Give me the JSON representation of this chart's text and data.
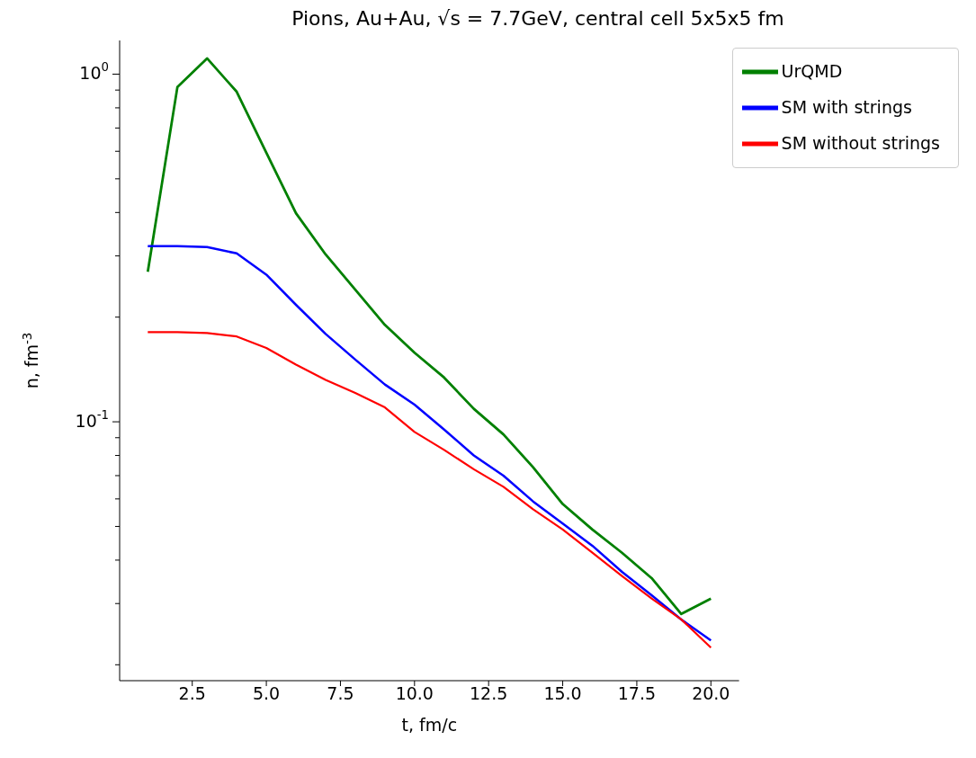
{
  "chart_data": {
    "type": "line",
    "title": "Pions, Au+Au, √s = 7.7GeV, central cell 5x5x5 fm",
    "xlabel": "t, fm/c",
    "ylabel": "n, fm$^{-3}$",
    "x": [
      1,
      2,
      3,
      4,
      5,
      6,
      7,
      8,
      9,
      10,
      11,
      12,
      13,
      14,
      15,
      16,
      17,
      18,
      19,
      20
    ],
    "series": [
      {
        "name": "UrQMD",
        "color": "#008000",
        "values": [
          0.27,
          0.919,
          1.11,
          0.89,
          0.594,
          0.398,
          0.303,
          0.24,
          0.19,
          0.158,
          0.134,
          0.109,
          0.092,
          0.074,
          0.058,
          0.049,
          0.042,
          0.0355,
          0.028,
          0.031
        ]
      },
      {
        "name": "SM with strings",
        "color": "#0000ff",
        "values": [
          0.32,
          0.32,
          0.318,
          0.305,
          0.265,
          0.217,
          0.179,
          0.151,
          0.128,
          0.112,
          0.095,
          0.08,
          0.07,
          0.059,
          0.051,
          0.044,
          0.037,
          0.0317,
          0.027,
          0.0235
        ]
      },
      {
        "name": "SM without strings",
        "color": "#ff0000",
        "values": [
          0.181,
          0.181,
          0.18,
          0.176,
          0.163,
          0.146,
          0.132,
          0.121,
          0.11,
          0.0935,
          0.083,
          0.073,
          0.065,
          0.056,
          0.049,
          0.042,
          0.036,
          0.031,
          0.027,
          0.0224
        ]
      }
    ],
    "xlim": [
      0.05,
      20.95
    ],
    "ylim": [
      0.018,
      1.25
    ],
    "xticks": [
      2.5,
      {
        "value": 5,
        "label": "5.0"
      },
      7.5,
      {
        "value": 10,
        "label": "10.0"
      },
      12.5,
      {
        "value": 15,
        "label": "15.0"
      },
      17.5,
      {
        "value": 20,
        "label": "20.0"
      }
    ],
    "yticks": [
      {
        "value": 0.02,
        "label": null
      },
      {
        "value": 0.03,
        "label": null
      },
      {
        "value": 0.04,
        "label": null
      },
      {
        "value": 0.05,
        "label": null
      },
      {
        "value": 0.06,
        "label": null
      },
      {
        "value": 0.07,
        "label": null
      },
      {
        "value": 0.08,
        "label": null
      },
      {
        "value": 0.09,
        "label": null
      },
      {
        "value": 0.1,
        "label": "10$^{-1}$"
      },
      {
        "value": 0.2,
        "label": null
      },
      {
        "value": 0.3,
        "label": null
      },
      {
        "value": 0.4,
        "label": null
      },
      {
        "value": 0.5,
        "label": null
      },
      {
        "value": 0.6,
        "label": null
      },
      {
        "value": 0.7,
        "label": null
      },
      {
        "value": 0.8,
        "label": null
      },
      {
        "value": 0.9,
        "label": null
      },
      {
        "value": 1,
        "label": "10$^{0}$"
      }
    ],
    "log": "y",
    "grid": false,
    "legend": "top right",
    "marker": "none",
    "line_style": "solid"
  }
}
